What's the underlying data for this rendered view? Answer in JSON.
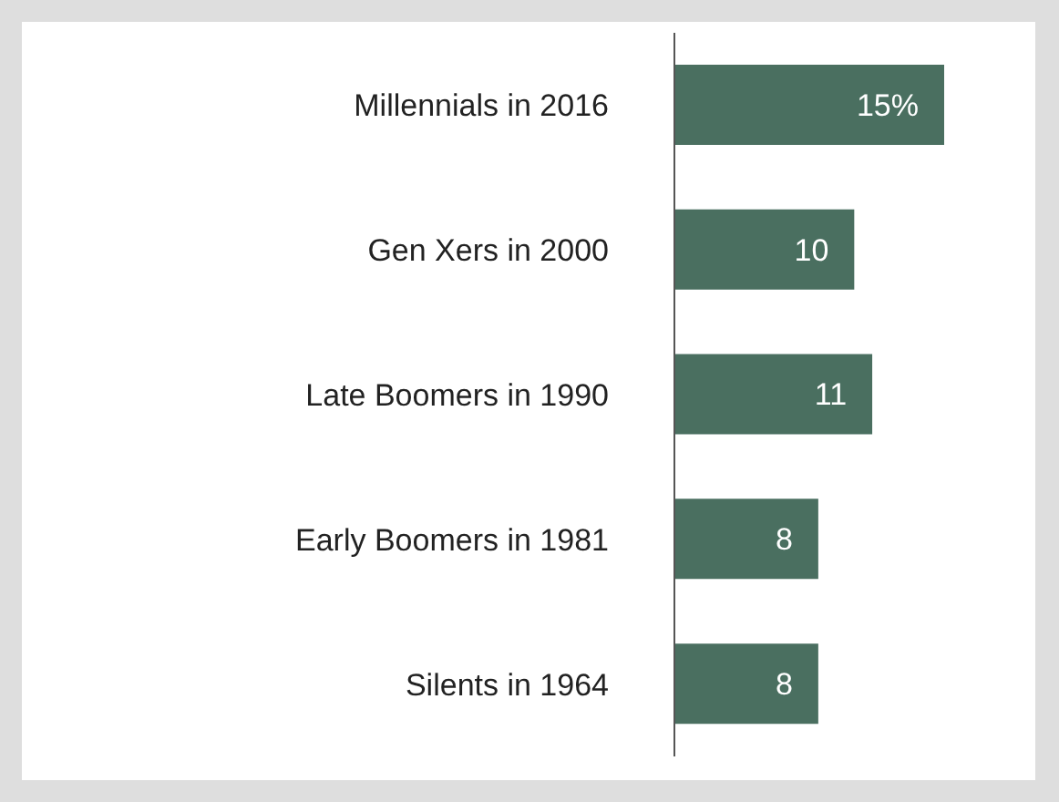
{
  "chart_data": {
    "type": "bar",
    "orientation": "horizontal",
    "categories": [
      "Millennials in 2016",
      "Gen Xers in 2000",
      "Late Boomers in 1990",
      "Early Boomers in 1981",
      "Silents in 1964"
    ],
    "values": [
      15,
      10,
      11,
      8,
      8
    ],
    "value_labels": [
      "15%",
      "10",
      "11",
      "8",
      "8"
    ],
    "color": "#4a6f60"
  }
}
